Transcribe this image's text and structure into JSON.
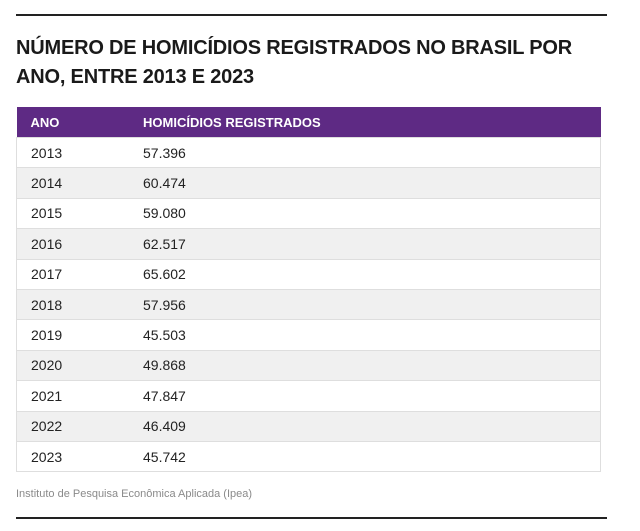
{
  "title": "NÚMERO DE HOMICÍDIOS REGISTRADOS NO BRASIL POR ANO, ENTRE 2013 E 2023",
  "colors": {
    "header_bg": "#5e2a84",
    "stripe": "#f0f0f0",
    "rule": "#222222"
  },
  "table": {
    "columns": [
      "ANO",
      "HOMICÍDIOS REGISTRADOS"
    ],
    "rows": [
      {
        "ano": "2013",
        "homicidios": "57.396"
      },
      {
        "ano": "2014",
        "homicidios": "60.474"
      },
      {
        "ano": "2015",
        "homicidios": "59.080"
      },
      {
        "ano": "2016",
        "homicidios": "62.517"
      },
      {
        "ano": "2017",
        "homicidios": "65.602"
      },
      {
        "ano": "2018",
        "homicidios": "57.956"
      },
      {
        "ano": "2019",
        "homicidios": "45.503"
      },
      {
        "ano": "2020",
        "homicidios": "49.868"
      },
      {
        "ano": "2021",
        "homicidios": "47.847"
      },
      {
        "ano": "2022",
        "homicidios": "46.409"
      },
      {
        "ano": "2023",
        "homicidios": "45.742"
      }
    ]
  },
  "source": "Instituto de Pesquisa Econômica Aplicada (Ipea)"
}
